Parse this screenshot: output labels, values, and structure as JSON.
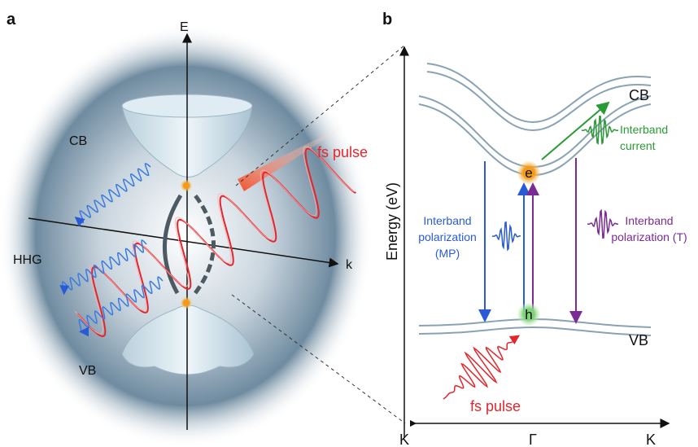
{
  "panel_a": {
    "label": "a",
    "axis_e": "E",
    "axis_k": "k",
    "cb": "CB",
    "vb": "VB",
    "hhg": "HHG",
    "fs_pulse": "fs pulse"
  },
  "panel_b": {
    "label": "b",
    "y_axis": "Energy (eV)",
    "cb": "CB",
    "vb": "VB",
    "electron": "e",
    "hole": "h",
    "interband_current": [
      "Interband",
      "current"
    ],
    "polarization_mp": [
      "Interband",
      "polarization",
      "(MP)"
    ],
    "polarization_t": [
      "Interband",
      "polarization (T)"
    ],
    "fs_pulse": "fs pulse",
    "k_left": "K",
    "gamma": "Γ",
    "k_right": "K"
  }
}
